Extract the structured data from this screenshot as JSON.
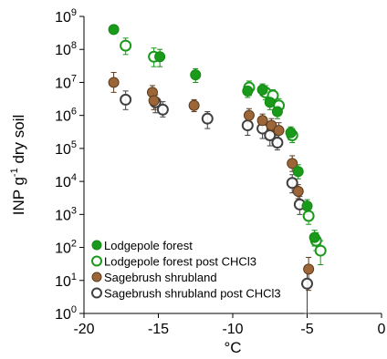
{
  "chart_data": {
    "type": "scatter",
    "title": "",
    "xlabel": "°C",
    "ylabel_parts": [
      "INP g",
      "-1",
      " dry soil"
    ],
    "xlim": [
      -20,
      0
    ],
    "ylim_log10": [
      0,
      9
    ],
    "log_y": true,
    "grid": false,
    "legend_position": "bottom-left",
    "x_ticks": [
      {
        "value": -20,
        "label": "-20"
      },
      {
        "value": -15,
        "label": "-15"
      },
      {
        "value": -10,
        "label": "-10"
      },
      {
        "value": -5,
        "label": "-5"
      },
      {
        "value": 0,
        "label": "0"
      }
    ],
    "y_ticks": [
      {
        "exp": 0,
        "base": "10",
        "sup": "0"
      },
      {
        "exp": 1,
        "base": "10",
        "sup": "1"
      },
      {
        "exp": 2,
        "base": "10",
        "sup": "2"
      },
      {
        "exp": 3,
        "base": "10",
        "sup": "3"
      },
      {
        "exp": 4,
        "base": "10",
        "sup": "4"
      },
      {
        "exp": 5,
        "base": "10",
        "sup": "5"
      },
      {
        "exp": 6,
        "base": "10",
        "sup": "6"
      },
      {
        "exp": 7,
        "base": "10",
        "sup": "7"
      },
      {
        "exp": 8,
        "base": "10",
        "sup": "8"
      },
      {
        "exp": 9,
        "base": "10",
        "sup": "9"
      }
    ],
    "series": [
      {
        "name": "Sagebrush shrubland post CHCl3",
        "marker": "open",
        "color": "#404040",
        "fill": "#ffffff",
        "points": [
          {
            "x": -17.2,
            "y": 3000000.0,
            "lo": 1500000.0,
            "hi": 5500000.0
          },
          {
            "x": -15.2,
            "y": 2500000.0,
            "lo": 1200000.0,
            "hi": 4200000.0
          },
          {
            "x": -14.7,
            "y": 1500000.0,
            "lo": 900000.0,
            "hi": 2600000.0
          },
          {
            "x": -11.7,
            "y": 800000.0,
            "lo": 400000.0,
            "hi": 1300000.0
          },
          {
            "x": -9.0,
            "y": 500000.0,
            "lo": 250000.0,
            "hi": 900000.0
          },
          {
            "x": -8.0,
            "y": 400000.0,
            "lo": 200000.0,
            "hi": 700000.0
          },
          {
            "x": -7.5,
            "y": 250000.0,
            "lo": 120000.0,
            "hi": 450000.0
          },
          {
            "x": -7.0,
            "y": 150000.0,
            "lo": 90000.0,
            "hi": 250000.0
          },
          {
            "x": -6.0,
            "y": 9000.0,
            "lo": 4500.0,
            "hi": 16000.0
          },
          {
            "x": -5.5,
            "y": 2000.0,
            "lo": 1000.0,
            "hi": 3500.0
          },
          {
            "x": -5.0,
            "y": 8,
            "lo": 1,
            "hi": 25
          }
        ]
      },
      {
        "name": "Sagebrush shrubland",
        "marker": "filled",
        "color": "#5a3a1c",
        "fill": "#9c6638",
        "points": [
          {
            "x": -18.0,
            "y": 10000000.0,
            "lo": 5000000.0,
            "hi": 20000000.0
          },
          {
            "x": -15.4,
            "y": 5000000.0,
            "lo": 2500000.0,
            "hi": 8000000.0
          },
          {
            "x": -15.3,
            "y": 2800000.0,
            "lo": 1500000.0,
            "hi": 4500000.0
          },
          {
            "x": -12.6,
            "y": 2000000.0,
            "lo": 1300000.0,
            "hi": 3000000.0
          },
          {
            "x": -8.9,
            "y": 1000000.0,
            "lo": 600000.0,
            "hi": 1600000.0
          },
          {
            "x": -8.0,
            "y": 700000.0,
            "lo": 400000.0,
            "hi": 1100000.0
          },
          {
            "x": -7.4,
            "y": 500000.0,
            "lo": 300000.0,
            "hi": 800000.0
          },
          {
            "x": -6.9,
            "y": 350000.0,
            "lo": 200000.0,
            "hi": 600000.0
          },
          {
            "x": -6.0,
            "y": 35000.0,
            "lo": 20000.0,
            "hi": 60000.0
          },
          {
            "x": -5.6,
            "y": 5000.0,
            "lo": 3000.0,
            "hi": 8000.0
          },
          {
            "x": -4.9,
            "y": 22,
            "lo": 5,
            "hi": 50
          }
        ]
      },
      {
        "name": "Lodgepole forest post CHCl3",
        "marker": "open",
        "color": "#1a9a1a",
        "fill": "#ffffff",
        "points": [
          {
            "x": -17.2,
            "y": 130000000.0,
            "lo": 70000000.0,
            "hi": 220000000.0
          },
          {
            "x": -15.3,
            "y": 60000000.0,
            "lo": 30000000.0,
            "hi": 110000000.0
          },
          {
            "x": -8.9,
            "y": 7000000.0,
            "lo": 4000000.0,
            "hi": 11000000.0
          },
          {
            "x": -7.8,
            "y": 5000000.0,
            "lo": 3000000.0,
            "hi": 8000000.0
          },
          {
            "x": -7.3,
            "y": 4000000.0,
            "lo": 2500000.0,
            "hi": 6000000.0
          },
          {
            "x": -6.9,
            "y": 2000000.0,
            "lo": 1200000.0,
            "hi": 3200000.0
          },
          {
            "x": -6.0,
            "y": 250000.0,
            "lo": 150000.0,
            "hi": 400000.0
          },
          {
            "x": -4.9,
            "y": 900,
            "lo": 500,
            "hi": 1500
          },
          {
            "x": -4.4,
            "y": 160,
            "lo": 80,
            "hi": 280
          },
          {
            "x": -4.1,
            "y": 80,
            "lo": 30,
            "hi": 160
          }
        ]
      },
      {
        "name": "Lodgepole forest",
        "marker": "filled",
        "color": "#138a13",
        "fill": "#1a9a1a",
        "points": [
          {
            "x": -18.0,
            "y": 400000000.0
          },
          {
            "x": -14.9,
            "y": 60000000.0,
            "lo": 30000000.0,
            "hi": 100000000.0
          },
          {
            "x": -12.5,
            "y": 17000000.0,
            "lo": 10000000.0,
            "hi": 26000000.0
          },
          {
            "x": -9.0,
            "y": 5500000.0,
            "lo": 3500000.0,
            "hi": 8500000.0
          },
          {
            "x": -8.0,
            "y": 6000000.0,
            "lo": 4000000.0,
            "hi": 9000000.0
          },
          {
            "x": -7.5,
            "y": 2500000.0,
            "lo": 1500000.0,
            "hi": 4000000.0
          },
          {
            "x": -7.0,
            "y": 1300000.0,
            "lo": 800000.0,
            "hi": 2000000.0
          },
          {
            "x": -6.1,
            "y": 300000.0,
            "lo": 180000.0,
            "hi": 450000.0
          },
          {
            "x": -5.6,
            "y": 20000.0,
            "lo": 12000.0,
            "hi": 32000.0
          },
          {
            "x": -5.0,
            "y": 1800.0,
            "lo": 1000.0,
            "hi": 2800.0
          },
          {
            "x": -4.5,
            "y": 200,
            "lo": 110,
            "hi": 330
          }
        ]
      }
    ],
    "legend": [
      {
        "label": "Lodgepole forest",
        "marker": "filled",
        "color": "#138a13",
        "fill": "#1a9a1a"
      },
      {
        "label": "Lodgepole forest post CHCl3",
        "marker": "open",
        "color": "#1a9a1a",
        "fill": "#ffffff"
      },
      {
        "label": "Sagebrush shrubland",
        "marker": "filled",
        "color": "#5a3a1c",
        "fill": "#9c6638"
      },
      {
        "label": "Sagebrush shrubland post CHCl3",
        "marker": "open",
        "color": "#404040",
        "fill": "#ffffff"
      }
    ]
  }
}
